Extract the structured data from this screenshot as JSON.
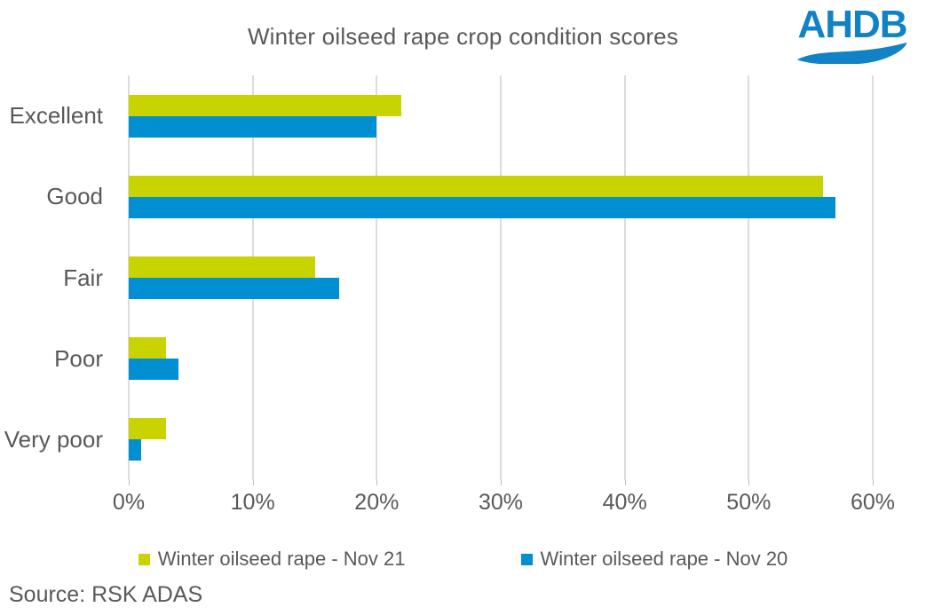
{
  "header": {
    "logo_text": "AHDB"
  },
  "source": "Source: RSK ADAS",
  "colors": {
    "series_nov21": "#C8D300",
    "series_nov20": "#0090D2",
    "logo_blue": "#1182C5",
    "text_gray": "#595959",
    "gridline": "#DCDCDC"
  },
  "chart_data": {
    "type": "bar",
    "orientation": "horizontal",
    "title": "Winter oilseed rape crop condition scores",
    "categories": [
      "Excellent",
      "Good",
      "Fair",
      "Poor",
      "Very poor"
    ],
    "series": [
      {
        "name": "Winter oilseed rape - Nov 21",
        "color": "#C8D300",
        "values": [
          22,
          56,
          15,
          3,
          3
        ]
      },
      {
        "name": "Winter oilseed rape - Nov 20",
        "color": "#0090D2",
        "values": [
          20,
          57,
          17,
          4,
          1
        ]
      }
    ],
    "xlabel": "",
    "ylabel": "",
    "xlim": [
      0,
      60
    ],
    "x_ticks": [
      "0%",
      "10%",
      "20%",
      "30%",
      "40%",
      "50%",
      "60%"
    ],
    "x_tick_values": [
      0,
      10,
      20,
      30,
      40,
      50,
      60
    ],
    "grid": "vertical",
    "legend_position": "bottom"
  }
}
